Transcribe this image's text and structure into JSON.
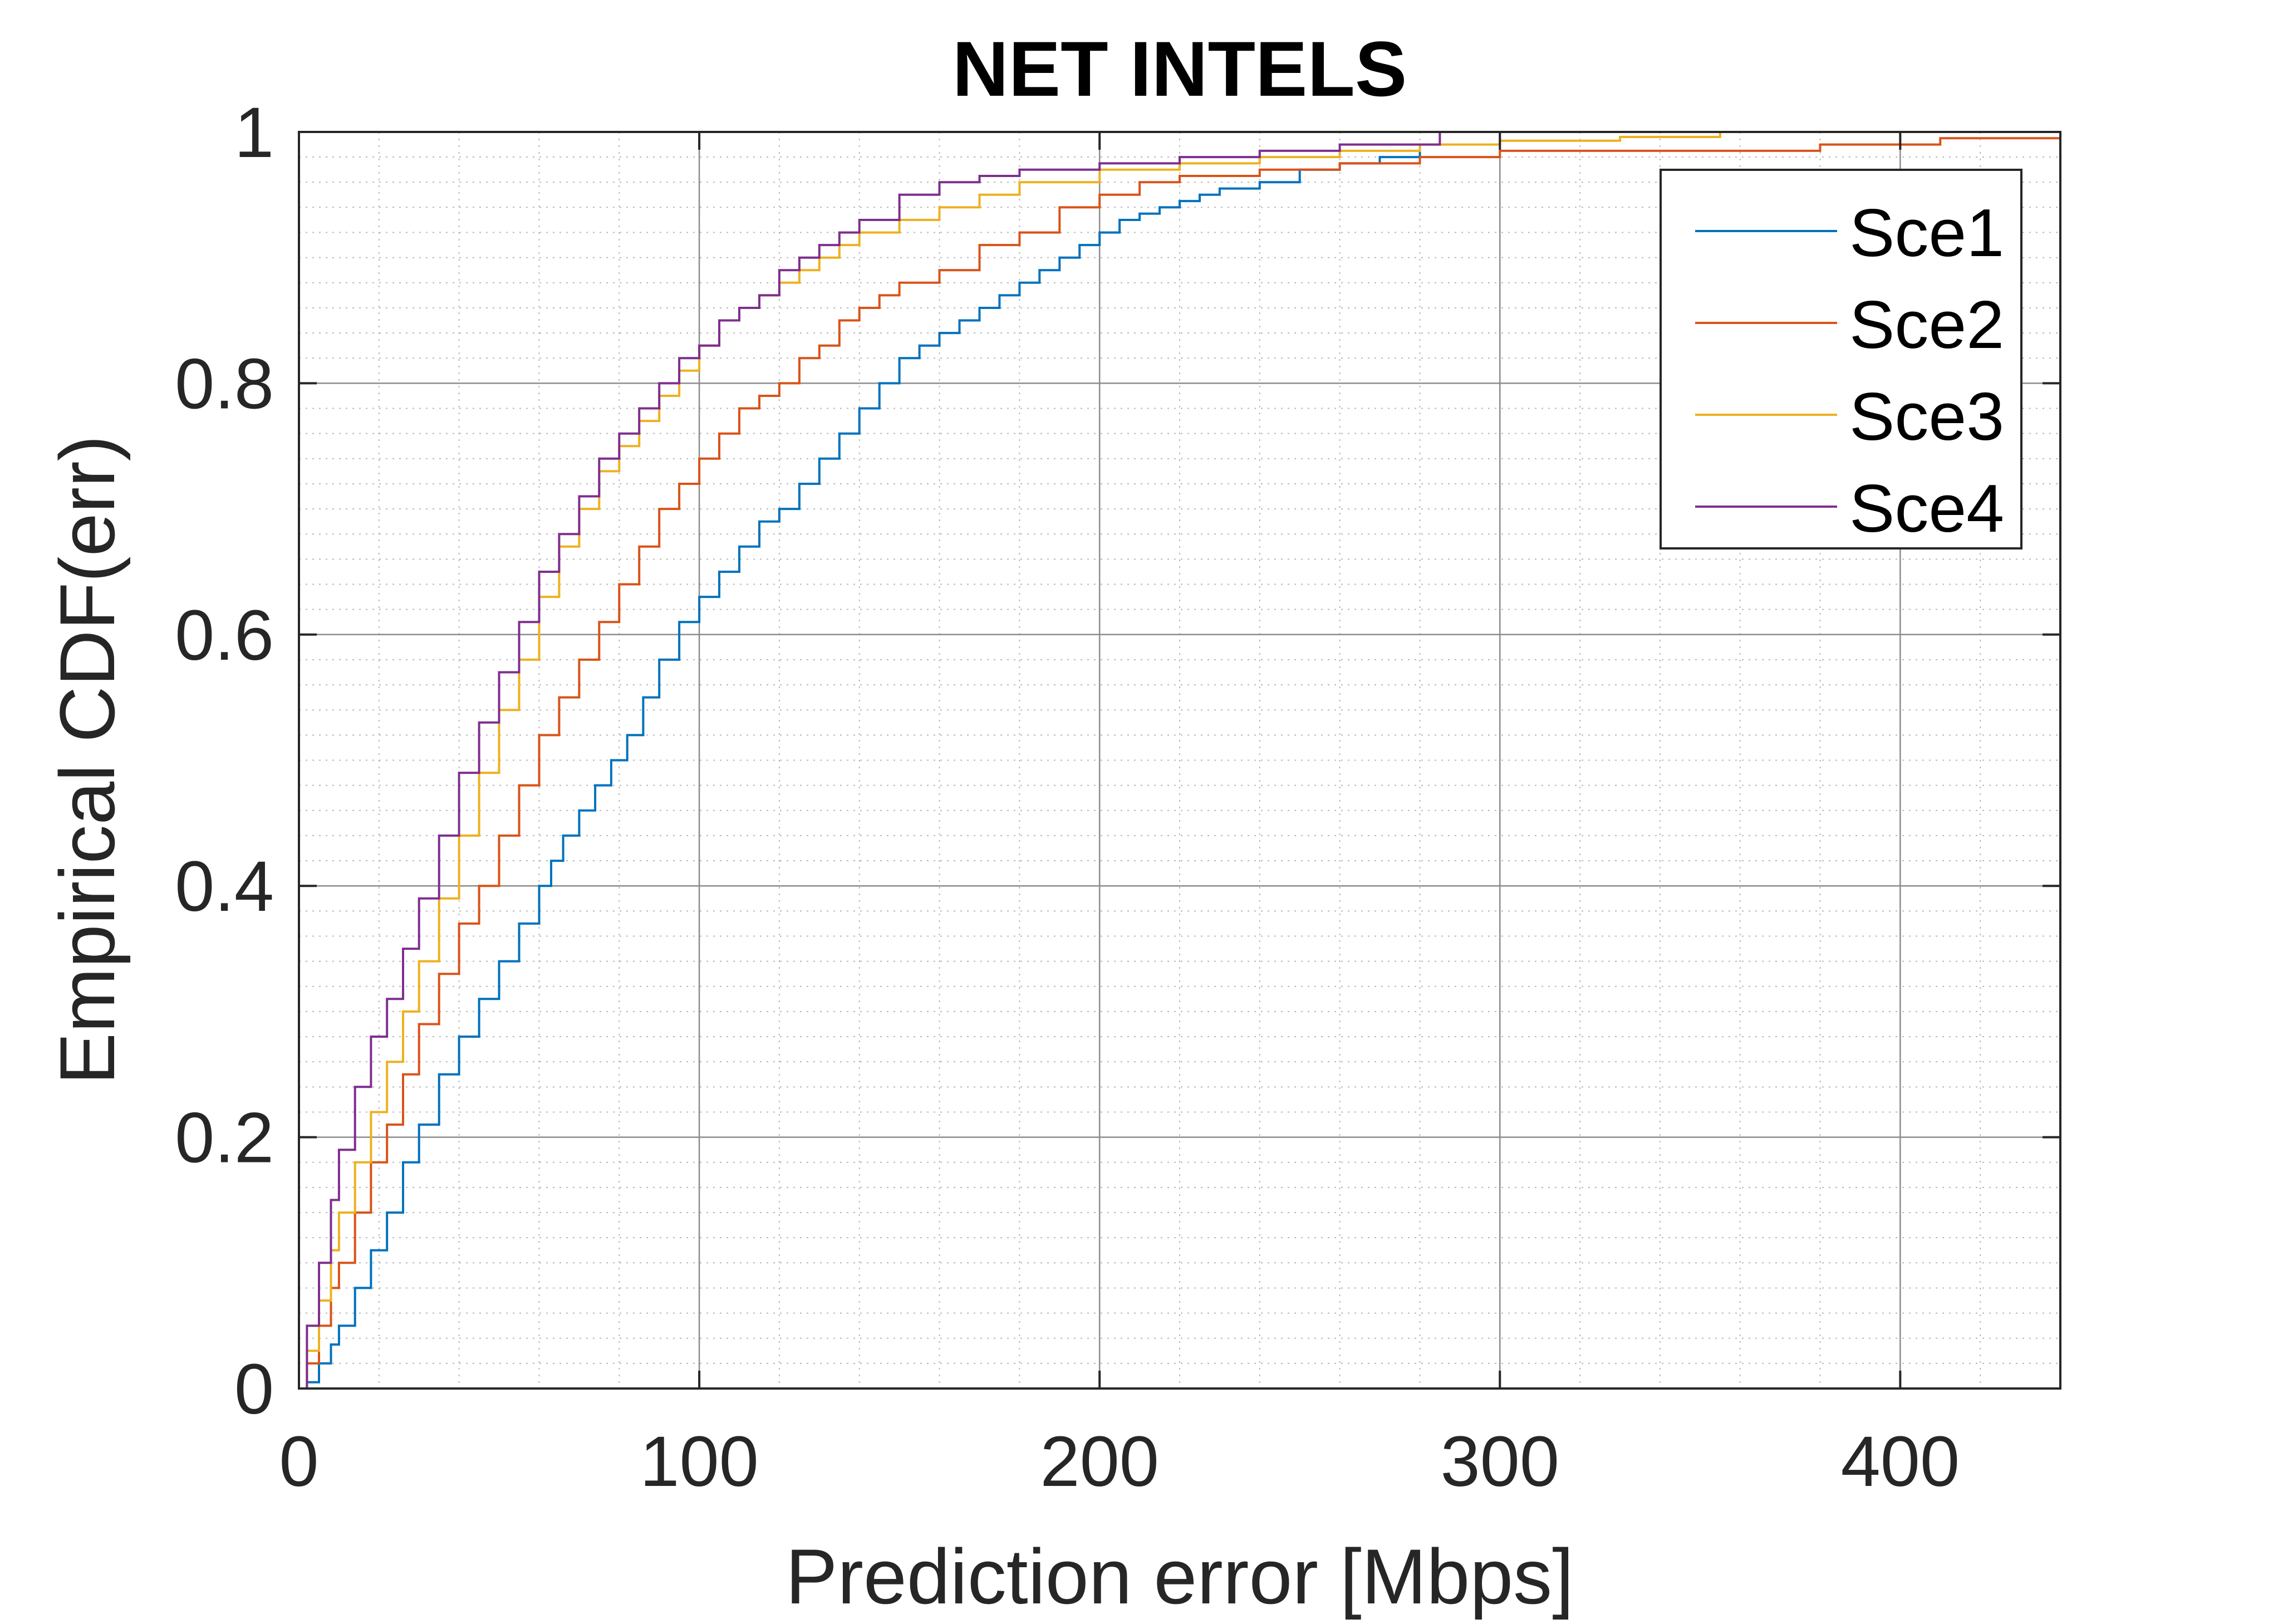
{
  "chart_data": {
    "type": "line",
    "title": "NET INTELS",
    "xlabel": "Prediction error [Mbps]",
    "ylabel": "Empirical CDF(err)",
    "xlim": [
      0,
      440
    ],
    "ylim": [
      0,
      1
    ],
    "xticks": [
      0,
      100,
      200,
      300,
      400
    ],
    "xtick_labels": [
      "0",
      "100",
      "200",
      "300",
      "400"
    ],
    "yticks": [
      0,
      0.2,
      0.4,
      0.6,
      0.8,
      1
    ],
    "ytick_labels": [
      "0",
      "0.2",
      "0.4",
      "0.6",
      "0.8",
      "1"
    ],
    "grid": true,
    "minor_grid": true,
    "legend_position": "top-right",
    "series": [
      {
        "name": "Sce1",
        "color": "#0072BD",
        "x": [
          0,
          2,
          5,
          8,
          10,
          14,
          18,
          22,
          26,
          30,
          35,
          40,
          45,
          50,
          55,
          60,
          63,
          66,
          70,
          74,
          78,
          82,
          86,
          90,
          95,
          100,
          105,
          110,
          115,
          120,
          125,
          130,
          135,
          140,
          145,
          150,
          155,
          160,
          165,
          170,
          175,
          180,
          185,
          190,
          195,
          200,
          205,
          210,
          215,
          220,
          225,
          230,
          240,
          250,
          260,
          270,
          280
        ],
        "y": [
          0,
          0.005,
          0.02,
          0.035,
          0.05,
          0.08,
          0.11,
          0.14,
          0.18,
          0.21,
          0.25,
          0.28,
          0.31,
          0.34,
          0.37,
          0.4,
          0.42,
          0.44,
          0.46,
          0.48,
          0.5,
          0.52,
          0.55,
          0.58,
          0.61,
          0.63,
          0.65,
          0.67,
          0.69,
          0.7,
          0.72,
          0.74,
          0.76,
          0.78,
          0.8,
          0.82,
          0.83,
          0.84,
          0.85,
          0.86,
          0.87,
          0.88,
          0.89,
          0.9,
          0.91,
          0.92,
          0.93,
          0.935,
          0.94,
          0.945,
          0.95,
          0.955,
          0.96,
          0.97,
          0.975,
          0.98,
          0.99
        ]
      },
      {
        "name": "Sce2",
        "color": "#D95319",
        "x": [
          0,
          2,
          5,
          8,
          10,
          14,
          18,
          22,
          26,
          30,
          35,
          40,
          45,
          50,
          55,
          60,
          65,
          70,
          75,
          80,
          85,
          90,
          95,
          100,
          105,
          110,
          115,
          120,
          125,
          130,
          135,
          140,
          145,
          150,
          160,
          170,
          180,
          190,
          200,
          210,
          220,
          240,
          260,
          280,
          300,
          340,
          380,
          410,
          440
        ],
        "y": [
          0,
          0.02,
          0.05,
          0.08,
          0.1,
          0.14,
          0.18,
          0.21,
          0.25,
          0.29,
          0.33,
          0.37,
          0.4,
          0.44,
          0.48,
          0.52,
          0.55,
          0.58,
          0.61,
          0.64,
          0.67,
          0.7,
          0.72,
          0.74,
          0.76,
          0.78,
          0.79,
          0.8,
          0.82,
          0.83,
          0.85,
          0.86,
          0.87,
          0.88,
          0.89,
          0.91,
          0.92,
          0.94,
          0.95,
          0.96,
          0.965,
          0.97,
          0.975,
          0.98,
          0.985,
          0.985,
          0.99,
          0.995,
          0.995
        ]
      },
      {
        "name": "Sce3",
        "color": "#EDB120",
        "x": [
          0,
          2,
          5,
          8,
          10,
          14,
          18,
          22,
          26,
          30,
          35,
          40,
          45,
          50,
          55,
          60,
          65,
          70,
          75,
          80,
          85,
          90,
          95,
          100,
          105,
          110,
          115,
          120,
          125,
          130,
          135,
          140,
          150,
          160,
          170,
          180,
          200,
          220,
          240,
          260,
          280,
          300,
          330,
          355
        ],
        "y": [
          0,
          0.03,
          0.07,
          0.11,
          0.14,
          0.18,
          0.22,
          0.26,
          0.3,
          0.34,
          0.39,
          0.44,
          0.49,
          0.54,
          0.58,
          0.63,
          0.67,
          0.7,
          0.73,
          0.75,
          0.77,
          0.79,
          0.81,
          0.83,
          0.85,
          0.86,
          0.87,
          0.88,
          0.89,
          0.9,
          0.91,
          0.92,
          0.93,
          0.94,
          0.95,
          0.96,
          0.97,
          0.975,
          0.98,
          0.985,
          0.99,
          0.993,
          0.996,
          1.0
        ]
      },
      {
        "name": "Sce4",
        "color": "#7E2F8E",
        "x": [
          0,
          2,
          5,
          8,
          10,
          14,
          18,
          22,
          26,
          30,
          35,
          40,
          45,
          50,
          55,
          60,
          65,
          70,
          75,
          80,
          85,
          90,
          95,
          100,
          105,
          110,
          115,
          120,
          125,
          130,
          135,
          140,
          150,
          160,
          170,
          180,
          200,
          220,
          240,
          260,
          285
        ],
        "y": [
          0,
          0.05,
          0.1,
          0.15,
          0.19,
          0.24,
          0.28,
          0.31,
          0.35,
          0.39,
          0.44,
          0.49,
          0.53,
          0.57,
          0.61,
          0.65,
          0.68,
          0.71,
          0.74,
          0.76,
          0.78,
          0.8,
          0.82,
          0.83,
          0.85,
          0.86,
          0.87,
          0.89,
          0.9,
          0.91,
          0.92,
          0.93,
          0.95,
          0.96,
          0.965,
          0.97,
          0.975,
          0.98,
          0.985,
          0.99,
          1.0
        ]
      }
    ]
  }
}
